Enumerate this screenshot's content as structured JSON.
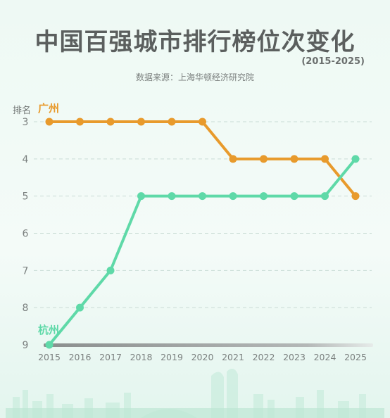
{
  "header": {
    "title": "中国百强城市排行榜位次变化",
    "period": "(2015-2025)",
    "source": "数据来源：上海华顿经济研究院"
  },
  "chart_data": {
    "type": "line",
    "title": "中国百强城市排行榜位次变化",
    "subtitle": "(2015-2025)",
    "ylabel": "排名",
    "xlabel": "",
    "y_reversed": true,
    "ylim": [
      3,
      9
    ],
    "yticks": [
      "3",
      "4",
      "5",
      "6",
      "7",
      "8",
      "9"
    ],
    "categories": [
      "2015",
      "2016",
      "2017",
      "2018",
      "2019",
      "2020",
      "2021",
      "2022",
      "2023",
      "2024",
      "2025"
    ],
    "series": [
      {
        "name": "广州",
        "color": "#e89a2c",
        "values": [
          3,
          3,
          3,
          3,
          3,
          3,
          4,
          4,
          4,
          4,
          5
        ]
      },
      {
        "name": "杭州",
        "color": "#5fd9a8",
        "values": [
          9,
          8,
          7,
          5,
          5,
          5,
          5,
          5,
          5,
          5,
          4
        ]
      }
    ],
    "grid": true,
    "grid_style": "dashed-horizontal"
  }
}
